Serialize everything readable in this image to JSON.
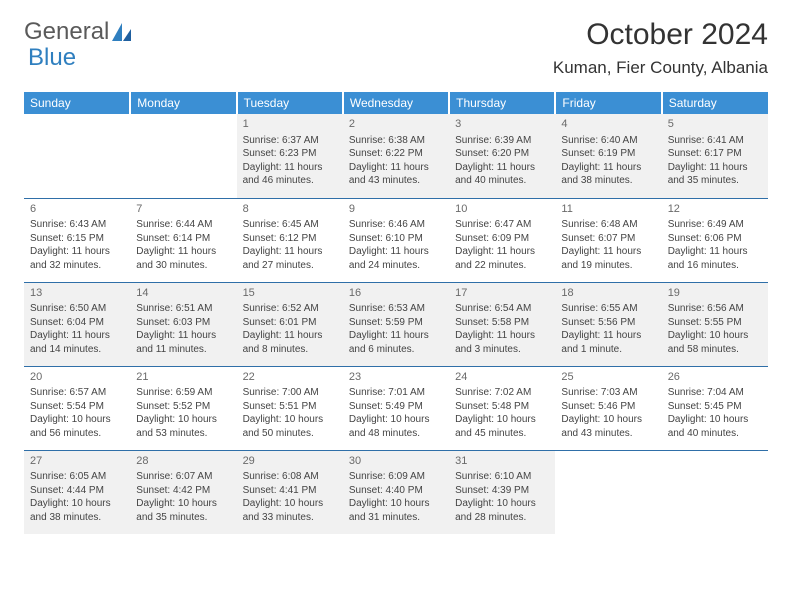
{
  "brand": {
    "part1": "General",
    "part2": "Blue"
  },
  "title": "October 2024",
  "location": "Kuman, Fier County, Albania",
  "colors": {
    "header_bg": "#3b8fd4",
    "header_text": "#ffffff",
    "border": "#2f6fa8",
    "shade_bg": "#f1f1f1",
    "logo_blue": "#2f7fbf",
    "body_text": "#444444"
  },
  "day_headers": [
    "Sunday",
    "Monday",
    "Tuesday",
    "Wednesday",
    "Thursday",
    "Friday",
    "Saturday"
  ],
  "weeks": [
    [
      null,
      null,
      {
        "n": "1",
        "sr": "6:37 AM",
        "ss": "6:23 PM",
        "dl": "11 hours and 46 minutes."
      },
      {
        "n": "2",
        "sr": "6:38 AM",
        "ss": "6:22 PM",
        "dl": "11 hours and 43 minutes."
      },
      {
        "n": "3",
        "sr": "6:39 AM",
        "ss": "6:20 PM",
        "dl": "11 hours and 40 minutes."
      },
      {
        "n": "4",
        "sr": "6:40 AM",
        "ss": "6:19 PM",
        "dl": "11 hours and 38 minutes."
      },
      {
        "n": "5",
        "sr": "6:41 AM",
        "ss": "6:17 PM",
        "dl": "11 hours and 35 minutes."
      }
    ],
    [
      {
        "n": "6",
        "sr": "6:43 AM",
        "ss": "6:15 PM",
        "dl": "11 hours and 32 minutes."
      },
      {
        "n": "7",
        "sr": "6:44 AM",
        "ss": "6:14 PM",
        "dl": "11 hours and 30 minutes."
      },
      {
        "n": "8",
        "sr": "6:45 AM",
        "ss": "6:12 PM",
        "dl": "11 hours and 27 minutes."
      },
      {
        "n": "9",
        "sr": "6:46 AM",
        "ss": "6:10 PM",
        "dl": "11 hours and 24 minutes."
      },
      {
        "n": "10",
        "sr": "6:47 AM",
        "ss": "6:09 PM",
        "dl": "11 hours and 22 minutes."
      },
      {
        "n": "11",
        "sr": "6:48 AM",
        "ss": "6:07 PM",
        "dl": "11 hours and 19 minutes."
      },
      {
        "n": "12",
        "sr": "6:49 AM",
        "ss": "6:06 PM",
        "dl": "11 hours and 16 minutes."
      }
    ],
    [
      {
        "n": "13",
        "sr": "6:50 AM",
        "ss": "6:04 PM",
        "dl": "11 hours and 14 minutes."
      },
      {
        "n": "14",
        "sr": "6:51 AM",
        "ss": "6:03 PM",
        "dl": "11 hours and 11 minutes."
      },
      {
        "n": "15",
        "sr": "6:52 AM",
        "ss": "6:01 PM",
        "dl": "11 hours and 8 minutes."
      },
      {
        "n": "16",
        "sr": "6:53 AM",
        "ss": "5:59 PM",
        "dl": "11 hours and 6 minutes."
      },
      {
        "n": "17",
        "sr": "6:54 AM",
        "ss": "5:58 PM",
        "dl": "11 hours and 3 minutes."
      },
      {
        "n": "18",
        "sr": "6:55 AM",
        "ss": "5:56 PM",
        "dl": "11 hours and 1 minute."
      },
      {
        "n": "19",
        "sr": "6:56 AM",
        "ss": "5:55 PM",
        "dl": "10 hours and 58 minutes."
      }
    ],
    [
      {
        "n": "20",
        "sr": "6:57 AM",
        "ss": "5:54 PM",
        "dl": "10 hours and 56 minutes."
      },
      {
        "n": "21",
        "sr": "6:59 AM",
        "ss": "5:52 PM",
        "dl": "10 hours and 53 minutes."
      },
      {
        "n": "22",
        "sr": "7:00 AM",
        "ss": "5:51 PM",
        "dl": "10 hours and 50 minutes."
      },
      {
        "n": "23",
        "sr": "7:01 AM",
        "ss": "5:49 PM",
        "dl": "10 hours and 48 minutes."
      },
      {
        "n": "24",
        "sr": "7:02 AM",
        "ss": "5:48 PM",
        "dl": "10 hours and 45 minutes."
      },
      {
        "n": "25",
        "sr": "7:03 AM",
        "ss": "5:46 PM",
        "dl": "10 hours and 43 minutes."
      },
      {
        "n": "26",
        "sr": "7:04 AM",
        "ss": "5:45 PM",
        "dl": "10 hours and 40 minutes."
      }
    ],
    [
      {
        "n": "27",
        "sr": "6:05 AM",
        "ss": "4:44 PM",
        "dl": "10 hours and 38 minutes."
      },
      {
        "n": "28",
        "sr": "6:07 AM",
        "ss": "4:42 PM",
        "dl": "10 hours and 35 minutes."
      },
      {
        "n": "29",
        "sr": "6:08 AM",
        "ss": "4:41 PM",
        "dl": "10 hours and 33 minutes."
      },
      {
        "n": "30",
        "sr": "6:09 AM",
        "ss": "4:40 PM",
        "dl": "10 hours and 31 minutes."
      },
      {
        "n": "31",
        "sr": "6:10 AM",
        "ss": "4:39 PM",
        "dl": "10 hours and 28 minutes."
      },
      null,
      null
    ]
  ],
  "labels": {
    "sunrise": "Sunrise: ",
    "sunset": "Sunset: ",
    "daylight": "Daylight: "
  }
}
